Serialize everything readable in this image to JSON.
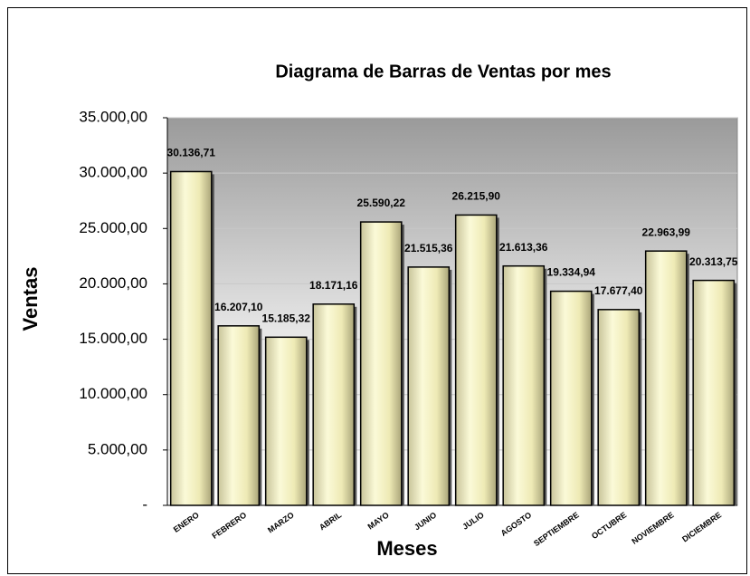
{
  "chart_data": {
    "type": "bar",
    "title": "Diagrama de Barras de Ventas por mes",
    "x_label": "Meses",
    "y_label": "Ventas",
    "categories": [
      "ENERO",
      "FEBRERO",
      "MARZO",
      "ABRIL",
      "MAYO",
      "JUNIO",
      "JULIO",
      "AGOSTO",
      "SEPTIEMBRE",
      "OCTUBRE",
      "NOVIEMBRE",
      "DICIEMBRE"
    ],
    "values": [
      30136.71,
      16207.1,
      15185.32,
      18171.16,
      25590.22,
      21515.36,
      26215.9,
      21613.36,
      19334.94,
      17677.4,
      22963.99,
      20313.75
    ],
    "value_labels": [
      "30.136,71",
      "16.207,10",
      "15.185,32",
      "18.171,16",
      "25.590,22",
      "21.515,36",
      "26.215,90",
      "21.613,36",
      "19.334,94",
      "17.677,40",
      "22.963,99",
      "20.313,75"
    ],
    "color": "#f4f1c0",
    "ylim": [
      0,
      35000
    ],
    "yticks": [
      {
        "value": 0,
        "label": "-"
      },
      {
        "value": 5000,
        "label": "5.000,00"
      },
      {
        "value": 10000,
        "label": "10.000,00"
      },
      {
        "value": 15000,
        "label": "15.000,00"
      },
      {
        "value": 20000,
        "label": "20.000,00"
      },
      {
        "value": 25000,
        "label": "25.000,00"
      },
      {
        "value": 30000,
        "label": "30.000,00"
      },
      {
        "value": 35000,
        "label": "35.000,00"
      }
    ],
    "grid": true
  }
}
